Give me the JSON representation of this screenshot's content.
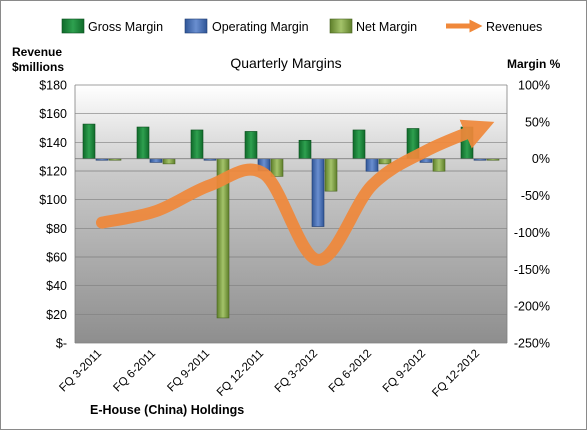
{
  "chart_data": {
    "type": "bar",
    "title": "Quarterly Margins",
    "company": "E-House (China) Holdings",
    "left_axis_label_line1": "Revenue",
    "left_axis_label_line2": "$millions",
    "right_axis_label": "Margin %",
    "categories": [
      "FQ 3-2011",
      "FQ 6-2011",
      "FQ 9-2011",
      "FQ 12-2011",
      "FQ 3-2012",
      "FQ 6-2012",
      "FQ 9-2012",
      "FQ 12-2012"
    ],
    "left_axis": {
      "min": 0,
      "max": 180,
      "step": 20,
      "tick_labels": [
        "$-",
        "$20",
        "$40",
        "$60",
        "$80",
        "$100",
        "$120",
        "$140",
        "$160",
        "$180"
      ]
    },
    "right_axis": {
      "min": -250,
      "max": 100,
      "step": 50,
      "tick_labels": [
        "-250%",
        "-200%",
        "-150%",
        "-100%",
        "-50%",
        "0%",
        "50%",
        "100%"
      ]
    },
    "legend": [
      {
        "key": "gross",
        "label": "Gross Margin",
        "color": "#1e8a3e"
      },
      {
        "key": "operating",
        "label": "Operating Margin",
        "color": "#4a72b8"
      },
      {
        "key": "net",
        "label": "Net Margin",
        "color": "#86a84a"
      },
      {
        "key": "revenues",
        "label": "Revenues",
        "color": "#f0883a"
      }
    ],
    "series": [
      {
        "name": "Gross Margin",
        "axis": "right",
        "values": [
          47,
          43,
          39,
          37,
          25,
          39,
          41,
          43
        ]
      },
      {
        "name": "Operating Margin",
        "axis": "right",
        "values": [
          -1,
          -5,
          -1,
          -16,
          -92,
          -17,
          -5,
          -2
        ]
      },
      {
        "name": "Net Margin",
        "axis": "right",
        "values": [
          -2,
          -7,
          -216,
          -24,
          -44,
          -7,
          -17,
          -2
        ]
      },
      {
        "name": "Revenues",
        "axis": "left",
        "values": [
          84,
          92,
          110,
          118,
          58,
          110,
          134,
          150
        ]
      }
    ],
    "grid": true,
    "legend_position": "top"
  }
}
